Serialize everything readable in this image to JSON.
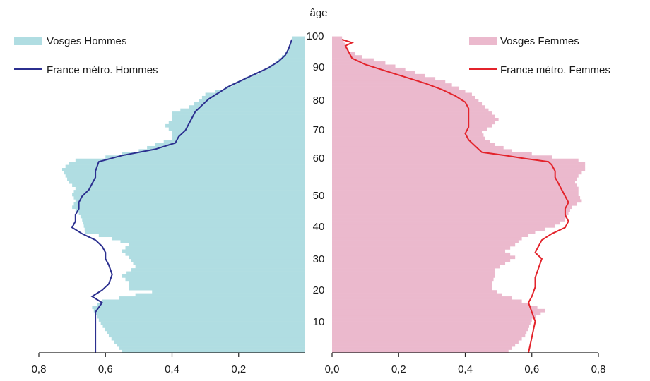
{
  "chart_data": {
    "type": "population-pyramid",
    "title": "",
    "axis_title": "âge",
    "age_ticks": [
      "10",
      "20",
      "30",
      "40",
      "50",
      "60",
      "70",
      "80",
      "90",
      "100"
    ],
    "x_tick_labels_left": [
      "0,8",
      "0,6",
      "0,4",
      "0,2"
    ],
    "x_tick_labels_right": [
      "0,0",
      "0,2",
      "0,4",
      "0,6",
      "0,8"
    ],
    "x_range": [
      0,
      0.8
    ],
    "age_range": [
      0,
      100
    ],
    "legend": {
      "vosges_men": "Vosges Hommes",
      "france_men": "France métro. Hommes",
      "vosges_women": "Vosges Femmes",
      "france_women": "France métro. Femmes"
    },
    "colors": {
      "vosges_men": "#b0dde2",
      "france_men": "#2b2f8f",
      "vosges_women": "#ebb9cd",
      "france_women": "#e3232b",
      "axis": "#222222"
    },
    "vosges_men_anchors": [
      [
        0,
        0.55
      ],
      [
        5,
        0.59
      ],
      [
        10,
        0.62
      ],
      [
        14,
        0.64
      ],
      [
        16,
        0.61
      ],
      [
        19,
        0.46
      ],
      [
        20,
        0.53
      ],
      [
        22,
        0.53
      ],
      [
        24,
        0.55
      ],
      [
        27,
        0.51
      ],
      [
        30,
        0.53
      ],
      [
        32,
        0.55
      ],
      [
        34,
        0.53
      ],
      [
        36,
        0.58
      ],
      [
        38,
        0.66
      ],
      [
        42,
        0.67
      ],
      [
        44,
        0.68
      ],
      [
        46,
        0.7
      ],
      [
        48,
        0.69
      ],
      [
        50,
        0.7
      ],
      [
        52,
        0.69
      ],
      [
        54,
        0.71
      ],
      [
        56,
        0.72
      ],
      [
        58,
        0.73
      ],
      [
        60,
        0.71
      ],
      [
        61,
        0.69
      ],
      [
        62,
        0.6
      ],
      [
        63,
        0.55
      ],
      [
        64,
        0.5
      ],
      [
        66,
        0.45
      ],
      [
        68,
        0.4
      ],
      [
        70,
        0.4
      ],
      [
        72,
        0.42
      ],
      [
        74,
        0.4
      ],
      [
        76,
        0.4
      ],
      [
        78,
        0.35
      ],
      [
        80,
        0.32
      ],
      [
        82,
        0.3
      ],
      [
        84,
        0.24
      ],
      [
        86,
        0.2
      ],
      [
        88,
        0.16
      ],
      [
        90,
        0.12
      ],
      [
        92,
        0.09
      ],
      [
        94,
        0.07
      ],
      [
        96,
        0.05
      ],
      [
        98,
        0.045
      ],
      [
        100,
        0.04
      ]
    ],
    "france_men_points": [
      [
        0,
        0.63
      ],
      [
        5,
        0.63
      ],
      [
        10,
        0.63
      ],
      [
        13,
        0.63
      ],
      [
        16,
        0.61
      ],
      [
        18,
        0.64
      ],
      [
        20,
        0.61
      ],
      [
        22,
        0.59
      ],
      [
        25,
        0.58
      ],
      [
        28,
        0.59
      ],
      [
        30,
        0.6
      ],
      [
        32,
        0.6
      ],
      [
        34,
        0.61
      ],
      [
        36,
        0.63
      ],
      [
        38,
        0.67
      ],
      [
        40,
        0.7
      ],
      [
        42,
        0.69
      ],
      [
        44,
        0.69
      ],
      [
        46,
        0.68
      ],
      [
        48,
        0.68
      ],
      [
        50,
        0.67
      ],
      [
        52,
        0.65
      ],
      [
        54,
        0.64
      ],
      [
        56,
        0.63
      ],
      [
        58,
        0.63
      ],
      [
        61,
        0.62
      ],
      [
        63,
        0.55
      ],
      [
        65,
        0.45
      ],
      [
        67,
        0.39
      ],
      [
        69,
        0.38
      ],
      [
        71,
        0.36
      ],
      [
        73,
        0.35
      ],
      [
        75,
        0.34
      ],
      [
        77,
        0.33
      ],
      [
        79,
        0.31
      ],
      [
        81,
        0.29
      ],
      [
        83,
        0.26
      ],
      [
        85,
        0.23
      ],
      [
        87,
        0.19
      ],
      [
        89,
        0.15
      ],
      [
        91,
        0.11
      ],
      [
        93,
        0.08
      ],
      [
        95,
        0.06
      ],
      [
        97,
        0.05
      ],
      [
        100,
        0.04
      ]
    ],
    "vosges_women_anchors": [
      [
        0,
        0.53
      ],
      [
        5,
        0.58
      ],
      [
        10,
        0.6
      ],
      [
        13,
        0.64
      ],
      [
        16,
        0.57
      ],
      [
        18,
        0.51
      ],
      [
        20,
        0.48
      ],
      [
        22,
        0.48
      ],
      [
        24,
        0.49
      ],
      [
        26,
        0.49
      ],
      [
        28,
        0.52
      ],
      [
        30,
        0.55
      ],
      [
        32,
        0.52
      ],
      [
        34,
        0.55
      ],
      [
        36,
        0.57
      ],
      [
        38,
        0.61
      ],
      [
        40,
        0.67
      ],
      [
        42,
        0.7
      ],
      [
        44,
        0.71
      ],
      [
        46,
        0.72
      ],
      [
        48,
        0.75
      ],
      [
        50,
        0.74
      ],
      [
        52,
        0.74
      ],
      [
        54,
        0.73
      ],
      [
        56,
        0.74
      ],
      [
        58,
        0.76
      ],
      [
        60,
        0.76
      ],
      [
        61,
        0.74
      ],
      [
        62,
        0.66
      ],
      [
        63,
        0.6
      ],
      [
        64,
        0.54
      ],
      [
        66,
        0.49
      ],
      [
        68,
        0.46
      ],
      [
        70,
        0.45
      ],
      [
        72,
        0.48
      ],
      [
        74,
        0.5
      ],
      [
        76,
        0.48
      ],
      [
        78,
        0.46
      ],
      [
        80,
        0.44
      ],
      [
        82,
        0.42
      ],
      [
        84,
        0.38
      ],
      [
        86,
        0.34
      ],
      [
        88,
        0.28
      ],
      [
        90,
        0.22
      ],
      [
        92,
        0.16
      ],
      [
        94,
        0.09
      ],
      [
        96,
        0.05
      ],
      [
        98,
        0.04
      ],
      [
        100,
        0.03
      ]
    ],
    "france_women_points": [
      [
        0,
        0.59
      ],
      [
        5,
        0.6
      ],
      [
        10,
        0.61
      ],
      [
        13,
        0.6
      ],
      [
        16,
        0.59
      ],
      [
        18,
        0.6
      ],
      [
        21,
        0.61
      ],
      [
        24,
        0.61
      ],
      [
        27,
        0.62
      ],
      [
        30,
        0.63
      ],
      [
        32,
        0.61
      ],
      [
        34,
        0.62
      ],
      [
        36,
        0.63
      ],
      [
        38,
        0.66
      ],
      [
        40,
        0.7
      ],
      [
        42,
        0.71
      ],
      [
        44,
        0.7
      ],
      [
        46,
        0.7
      ],
      [
        48,
        0.71
      ],
      [
        50,
        0.7
      ],
      [
        52,
        0.69
      ],
      [
        54,
        0.68
      ],
      [
        56,
        0.67
      ],
      [
        58,
        0.67
      ],
      [
        60,
        0.66
      ],
      [
        61,
        0.65
      ],
      [
        62,
        0.58
      ],
      [
        63,
        0.52
      ],
      [
        64,
        0.45
      ],
      [
        66,
        0.43
      ],
      [
        68,
        0.41
      ],
      [
        70,
        0.4
      ],
      [
        72,
        0.41
      ],
      [
        74,
        0.41
      ],
      [
        76,
        0.41
      ],
      [
        78,
        0.41
      ],
      [
        80,
        0.4
      ],
      [
        82,
        0.37
      ],
      [
        84,
        0.33
      ],
      [
        86,
        0.28
      ],
      [
        88,
        0.22
      ],
      [
        90,
        0.16
      ],
      [
        92,
        0.1
      ],
      [
        94,
        0.06
      ],
      [
        96,
        0.05
      ],
      [
        98,
        0.04
      ],
      [
        99,
        0.06
      ],
      [
        100,
        0.03
      ]
    ]
  }
}
